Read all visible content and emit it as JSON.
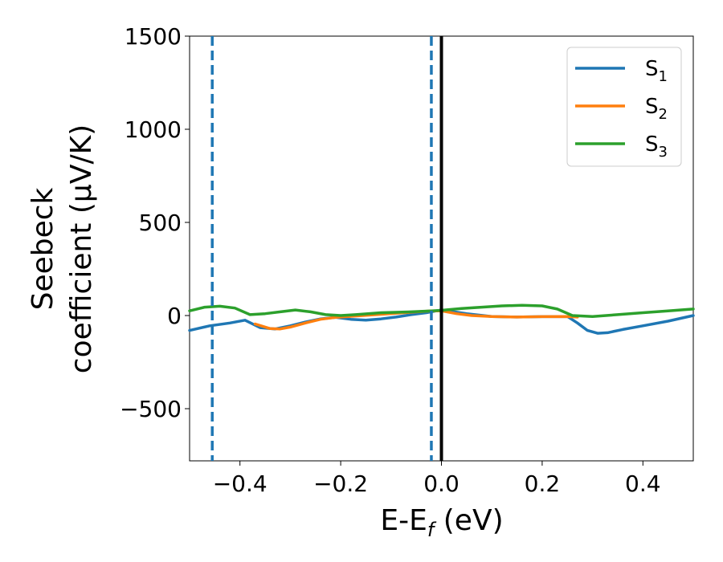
{
  "chart_data": {
    "type": "line",
    "xlabel": "E-E",
    "xlabel_sub": "f",
    "xlabel_unit": " (eV)",
    "ylabel_line1": "Seebeck",
    "ylabel_line2": "coefficient  (μV/K)",
    "xlim": [
      -0.5,
      0.5
    ],
    "ylim": [
      -780,
      1500
    ],
    "xticks": [
      -0.4,
      -0.2,
      0.0,
      0.2,
      0.4
    ],
    "xtick_labels": [
      "−0.4",
      "−0.2",
      "0.0",
      "0.2",
      "0.4"
    ],
    "yticks": [
      -500,
      0,
      500,
      1000,
      1500
    ],
    "ytick_labels": [
      "−500",
      "0",
      "500",
      "1000",
      "1500"
    ],
    "grid": false,
    "legend_position": "top-right",
    "series": [
      {
        "name": "S",
        "sub": "1",
        "color": "#1f77b4",
        "x": [
          -0.5,
          -0.46,
          -0.42,
          -0.39,
          -0.36,
          -0.33,
          -0.3,
          -0.27,
          -0.24,
          -0.21,
          -0.18,
          -0.15,
          -0.12,
          -0.09,
          -0.06,
          -0.03,
          -0.01,
          0.0,
          0.05,
          0.1,
          0.15,
          0.2,
          0.25,
          0.27,
          0.29,
          0.31,
          0.33,
          0.36,
          0.4,
          0.45,
          0.5
        ],
        "y": [
          -80,
          -55,
          -40,
          -25,
          -65,
          -72,
          -55,
          -35,
          -18,
          -10,
          -20,
          -25,
          -18,
          -8,
          5,
          15,
          25,
          30,
          10,
          -5,
          -8,
          -6,
          -5,
          -40,
          -80,
          -95,
          -92,
          -75,
          -55,
          -30,
          0
        ]
      },
      {
        "name": "S",
        "sub": "2",
        "color": "#ff7f0e",
        "x": [
          -0.37,
          -0.34,
          -0.32,
          -0.3,
          -0.27,
          -0.24,
          -0.21,
          -0.2,
          -0.02,
          0.0,
          0.03,
          0.06,
          0.1,
          0.15,
          0.2,
          0.25,
          0.27
        ],
        "y": [
          -45,
          -70,
          -72,
          -62,
          -40,
          -20,
          -10,
          -8,
          25,
          25,
          10,
          0,
          -5,
          -8,
          -6,
          -5,
          -8
        ]
      },
      {
        "name": "S",
        "sub": "3",
        "color": "#2ca02c",
        "x": [
          -0.5,
          -0.47,
          -0.44,
          -0.41,
          -0.38,
          -0.35,
          -0.32,
          -0.29,
          -0.26,
          -0.23,
          -0.2,
          -0.17,
          -0.12,
          -0.06,
          -0.02,
          0.0,
          0.04,
          0.08,
          0.12,
          0.16,
          0.2,
          0.23,
          0.26,
          0.3,
          0.35,
          0.4,
          0.45,
          0.5
        ],
        "y": [
          25,
          45,
          50,
          40,
          5,
          10,
          20,
          30,
          20,
          5,
          0,
          5,
          15,
          20,
          25,
          28,
          38,
          45,
          52,
          55,
          52,
          35,
          0,
          -5,
          5,
          15,
          25,
          35
        ]
      }
    ],
    "vlines": [
      {
        "x": -0.455,
        "style": "dashed",
        "color": "#1f77b4"
      },
      {
        "x": -0.02,
        "style": "dashed",
        "color": "#1f77b4"
      },
      {
        "x": 0.0,
        "style": "solid",
        "color": "#000000"
      }
    ]
  }
}
